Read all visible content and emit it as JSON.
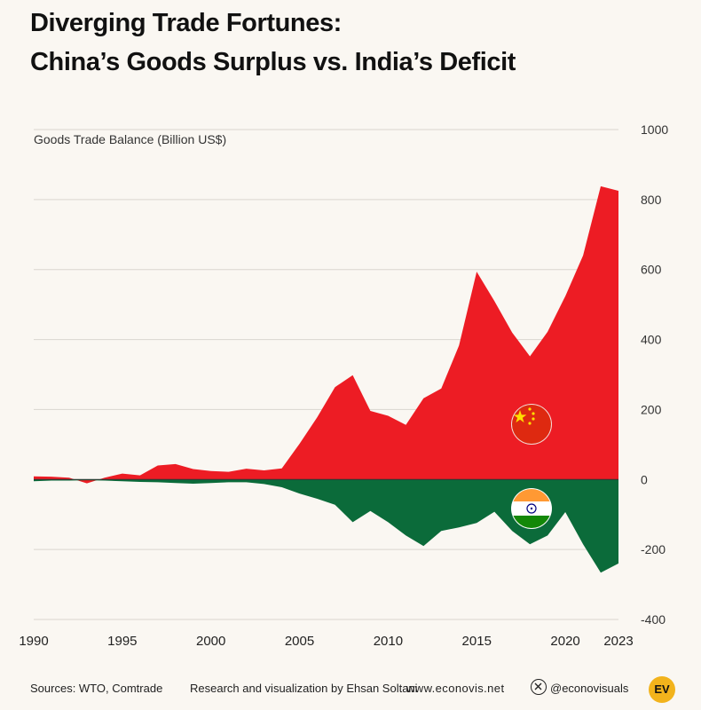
{
  "title": {
    "line1": "Diverging Trade Fortunes:",
    "line2": "China’s Goods Surplus vs. India’s Deficit"
  },
  "footer": {
    "sources": "Sources: WTO, Comtrade",
    "credit": "Research and visualization by Ehsan Soltani",
    "website": "www.econovis.net",
    "handle": "@econovisuals",
    "logo": "EV"
  },
  "colors": {
    "china": "#ed1c24",
    "india": "#0b6b3a",
    "grid": "#d9d6cf",
    "zero": "#333333"
  },
  "icons": [
    "china-flag-icon",
    "india-flag-icon",
    "x-logo-icon",
    "ev-logo-icon"
  ],
  "chart_data": {
    "type": "area",
    "ylabel": "Goods Trade Balance (Billion US$)",
    "ylim": [
      -400,
      1000
    ],
    "yticks": [
      1000,
      800,
      600,
      400,
      200,
      0,
      -200,
      -400
    ],
    "xlim": [
      1990,
      2023
    ],
    "xticks": [
      1990,
      1995,
      2000,
      2005,
      2010,
      2015,
      2020,
      2023
    ],
    "grid": true,
    "x": [
      1990,
      1991,
      1992,
      1993,
      1994,
      1995,
      1996,
      1997,
      1998,
      1999,
      2000,
      2001,
      2002,
      2003,
      2004,
      2005,
      2006,
      2007,
      2008,
      2009,
      2010,
      2011,
      2012,
      2013,
      2014,
      2015,
      2016,
      2017,
      2018,
      2019,
      2020,
      2021,
      2022,
      2023
    ],
    "series": [
      {
        "name": "China",
        "values": [
          9,
          8,
          5,
          -11,
          5,
          17,
          12,
          40,
          44,
          30,
          24,
          22,
          31,
          26,
          32,
          102,
          178,
          264,
          298,
          196,
          182,
          156,
          232,
          260,
          383,
          594,
          510,
          420,
          352,
          422,
          524,
          640,
          838,
          825
        ]
      },
      {
        "name": "India",
        "values": [
          -5,
          -3,
          -3,
          -2,
          -3,
          -5,
          -7,
          -8,
          -10,
          -12,
          -10,
          -8,
          -8,
          -13,
          -22,
          -40,
          -55,
          -72,
          -122,
          -90,
          -122,
          -160,
          -190,
          -147,
          -137,
          -124,
          -92,
          -147,
          -185,
          -160,
          -93,
          -185,
          -266,
          -240
        ]
      }
    ]
  }
}
